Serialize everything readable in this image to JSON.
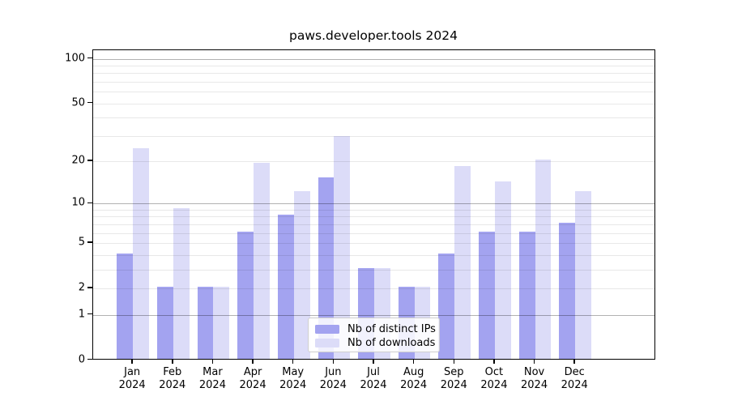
{
  "chart_data": {
    "type": "bar",
    "title": "paws.developer.tools 2024",
    "categories": [
      "Jan",
      "Feb",
      "Mar",
      "Apr",
      "May",
      "Jun",
      "Jul",
      "Aug",
      "Sep",
      "Oct",
      "Nov",
      "Dec"
    ],
    "category_year": "2024",
    "series": [
      {
        "name": "Nb of distinct IPs",
        "values": [
          4,
          2,
          2,
          6,
          8,
          15,
          3,
          2,
          4,
          6,
          6,
          7
        ],
        "color": "#a3a3f0"
      },
      {
        "name": "Nb of downloads",
        "values": [
          24,
          9,
          2,
          19,
          12,
          29,
          3,
          2,
          18,
          14,
          20,
          12
        ],
        "color": "#dcdcf8"
      }
    ],
    "yscale": "log1p",
    "ylim": [
      0,
      115
    ],
    "yticks": [
      0,
      1,
      2,
      5,
      10,
      20,
      50,
      100
    ],
    "grid": true,
    "grid_major_values": [
      1,
      10,
      100
    ],
    "grid_minor_values": [
      2,
      3,
      4,
      5,
      6,
      7,
      8,
      9,
      20,
      30,
      40,
      50,
      60,
      70,
      80,
      90
    ],
    "legend_position": "lower center",
    "bar_group_width_fraction": 0.8,
    "x_padding_categories": 1
  },
  "colors": {
    "background": "#ffffff",
    "axis": "#000000",
    "text": "#000000",
    "grid_major": "#b4b4b4",
    "grid_minor": "#e7e7e7",
    "bar_distinct_ips": "#a3a3f0",
    "bar_downloads": "#dcdcf8"
  }
}
